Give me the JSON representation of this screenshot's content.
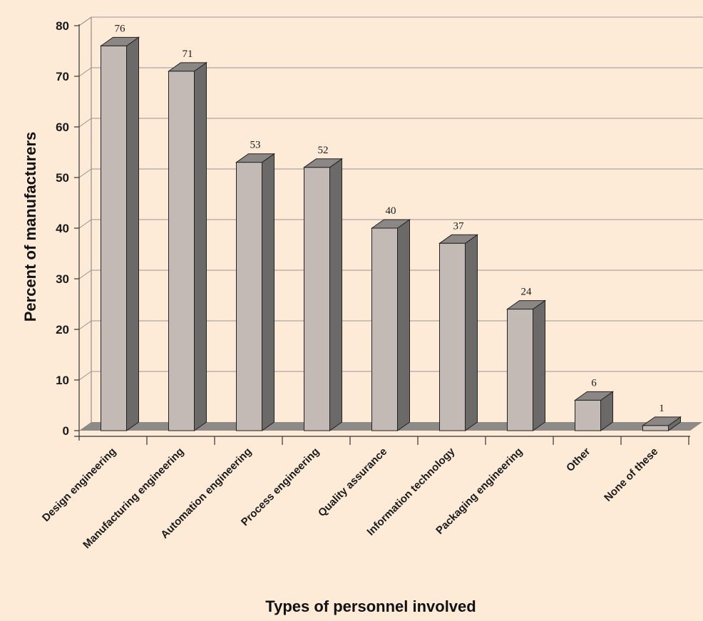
{
  "chart_data": {
    "type": "bar",
    "style": "3d-column",
    "categories": [
      "Design engineering",
      "Manufacturing engineering",
      "Automation engineering",
      "Process engineering",
      "Quality assurance",
      "Information technology",
      "Packaging engineering",
      "Other",
      "None of these"
    ],
    "values": [
      76,
      71,
      53,
      52,
      40,
      37,
      24,
      6,
      1
    ],
    "data_labels": [
      "76",
      "71",
      "53",
      "52",
      "40",
      "37",
      "24",
      "6",
      "1"
    ],
    "title": "",
    "xlabel": "Types of personnel involved",
    "ylabel": "Percent of manufacturers",
    "ylim": [
      0,
      80
    ],
    "yticks": [
      0,
      10,
      20,
      30,
      40,
      50,
      60,
      70,
      80
    ],
    "grid": true,
    "legend": "none"
  },
  "colors": {
    "background": "#fdebd8",
    "bar_front": "#c3bab6",
    "bar_top": "#8b8784",
    "bar_side": "#6c6969",
    "floor": "#8e8a87",
    "gridline": "#9a948f",
    "wall_edge": "#777777"
  }
}
